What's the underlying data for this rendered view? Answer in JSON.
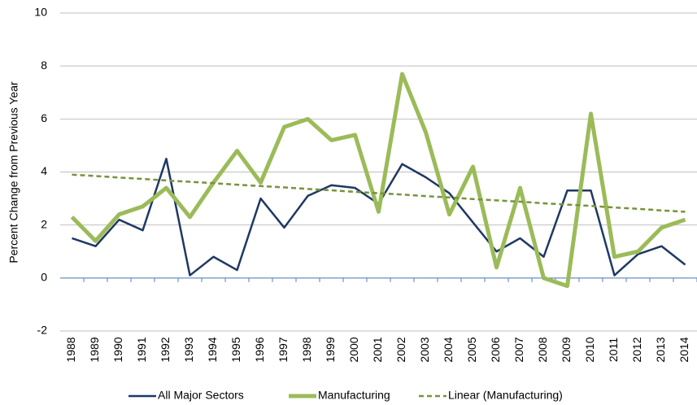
{
  "chart_data": {
    "type": "line",
    "y_label": "Percent Change from Previous Year",
    "categories": [
      "1988",
      "1989",
      "1990",
      "1991",
      "1992",
      "1993",
      "1994",
      "1995",
      "1996",
      "1997",
      "1998",
      "1999",
      "2000",
      "2001",
      "2002",
      "2003",
      "2004",
      "2005",
      "2006",
      "2007",
      "2008",
      "2009",
      "2010",
      "2011",
      "2012",
      "2013",
      "2014"
    ],
    "series": [
      {
        "name": "All Major Sectors",
        "color": "#1f3864",
        "values": [
          1.5,
          1.2,
          2.2,
          1.8,
          4.5,
          0.1,
          0.8,
          0.3,
          3.0,
          1.9,
          3.1,
          3.5,
          3.4,
          2.8,
          4.3,
          3.8,
          3.2,
          2.1,
          1.0,
          1.5,
          0.8,
          3.3,
          3.3,
          0.1,
          0.9,
          1.2,
          0.5
        ]
      },
      {
        "name": "Manufacturing",
        "color": "#9bbb59",
        "values": [
          2.3,
          1.4,
          2.4,
          2.7,
          3.4,
          2.3,
          3.6,
          4.8,
          3.6,
          5.7,
          6.0,
          5.2,
          5.4,
          2.5,
          7.7,
          5.5,
          2.4,
          4.2,
          0.4,
          3.4,
          0.0,
          -0.3,
          6.2,
          0.8,
          1.0,
          1.9,
          2.2
        ]
      },
      {
        "name": "Linear (Manufacturing)",
        "color": "#77933c",
        "dashed": true,
        "values": [
          3.9,
          3.85,
          3.79,
          3.74,
          3.68,
          3.63,
          3.58,
          3.52,
          3.47,
          3.42,
          3.36,
          3.31,
          3.25,
          3.2,
          3.15,
          3.09,
          3.04,
          2.98,
          2.93,
          2.88,
          2.82,
          2.77,
          2.72,
          2.66,
          2.61,
          2.55,
          2.5
        ]
      }
    ],
    "ylim": [
      -2,
      10
    ],
    "yticks": [
      -2,
      0,
      2,
      4,
      6,
      8,
      10
    ],
    "grid": true,
    "legend": "bottom"
  }
}
